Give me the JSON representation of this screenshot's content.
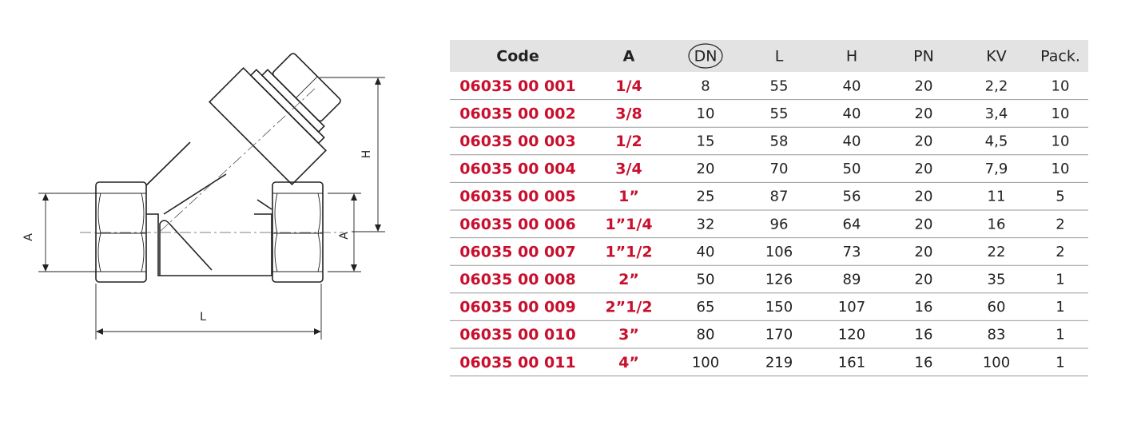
{
  "drawing": {
    "labels": {
      "a_left": "A",
      "a_right": "A",
      "h": "H",
      "l": "L"
    }
  },
  "table": {
    "headers": [
      "Code",
      "A",
      "DN",
      "L",
      "H",
      "PN",
      "KV",
      "Pack."
    ],
    "rows": [
      [
        "06035 00 001",
        "1/4",
        "8",
        "55",
        "40",
        "20",
        "2,2",
        "10"
      ],
      [
        "06035 00 002",
        "3/8",
        "10",
        "55",
        "40",
        "20",
        "3,4",
        "10"
      ],
      [
        "06035 00 003",
        "1/2",
        "15",
        "58",
        "40",
        "20",
        "4,5",
        "10"
      ],
      [
        "06035 00 004",
        "3/4",
        "20",
        "70",
        "50",
        "20",
        "7,9",
        "10"
      ],
      [
        "06035 00 005",
        "1”",
        "25",
        "87",
        "56",
        "20",
        "11",
        "5"
      ],
      [
        "06035 00 006",
        "1”1/4",
        "32",
        "96",
        "64",
        "20",
        "16",
        "2"
      ],
      [
        "06035 00 007",
        "1”1/2",
        "40",
        "106",
        "73",
        "20",
        "22",
        "2"
      ],
      [
        "06035 00 008",
        "2”",
        "50",
        "126",
        "89",
        "20",
        "35",
        "1"
      ],
      [
        "06035 00 009",
        "2”1/2",
        "65",
        "150",
        "107",
        "16",
        "60",
        "1"
      ],
      [
        "06035 00 010",
        "3”",
        "80",
        "170",
        "120",
        "16",
        "83",
        "1"
      ],
      [
        "06035 00 011",
        "4”",
        "100",
        "219",
        "161",
        "16",
        "100",
        "1"
      ]
    ]
  }
}
